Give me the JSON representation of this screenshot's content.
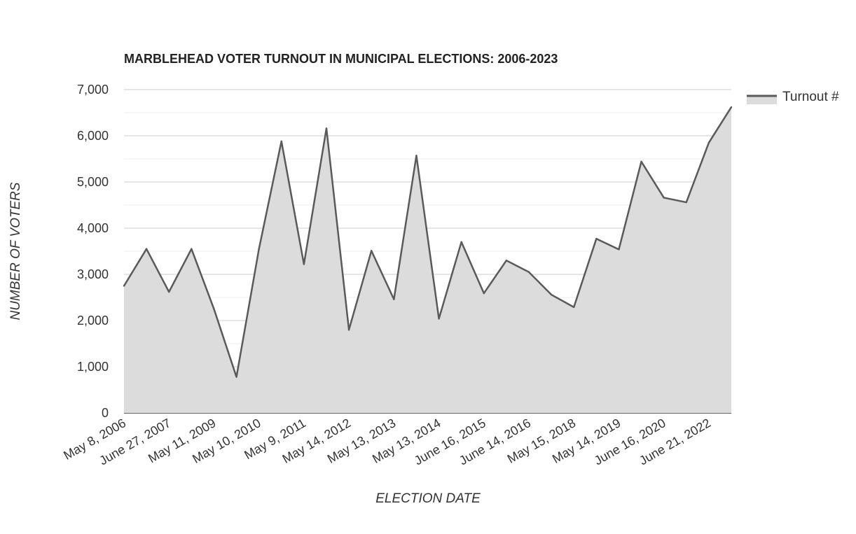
{
  "chart_data": {
    "type": "area",
    "title": "MARBLEHEAD VOTER TURNOUT IN MUNICIPAL ELECTIONS: 2006-2023",
    "xlabel": "ELECTION DATE",
    "ylabel": "NUMBER OF VOTERS",
    "ylim": [
      0,
      7000
    ],
    "yticks": [
      "0",
      "1,000",
      "2,000",
      "3,000",
      "4,000",
      "5,000",
      "6,000",
      "7,000"
    ],
    "x_tick_labels": [
      "May 8, 2006",
      "June 27, 2007",
      "May 11, 2009",
      "May 10, 2010",
      "May 9, 2011",
      "May 14, 2012",
      "May 13, 2013",
      "May 13, 2014",
      "June 16, 2015",
      "June 14, 2016",
      "May 15, 2018",
      "May 14, 2019",
      "June 16, 2020",
      "June 21, 2022"
    ],
    "grid": true,
    "legend_position": "top-right",
    "series": [
      {
        "name": "Turnout #",
        "color": "#5a5a5a",
        "fill": "#dcdcdd",
        "values": [
          2750,
          3550,
          2620,
          3550,
          2250,
          780,
          3550,
          5880,
          3220,
          6160,
          1800,
          3510,
          2460,
          5570,
          2040,
          3700,
          2590,
          3300,
          3050,
          2560,
          2290,
          3770,
          3540,
          5440,
          4660,
          4560,
          5850,
          6620
        ]
      }
    ]
  }
}
